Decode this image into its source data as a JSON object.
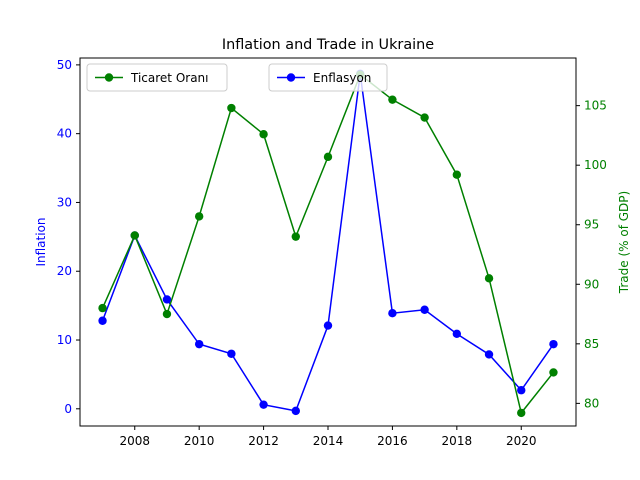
{
  "chart_data": {
    "type": "line",
    "title": "Inflation and Trade in Ukraine",
    "xlabel": "",
    "x": [
      2007,
      2008,
      2009,
      2010,
      2011,
      2012,
      2013,
      2014,
      2015,
      2016,
      2017,
      2018,
      2019,
      2020,
      2021
    ],
    "x_ticks": [
      2008,
      2010,
      2012,
      2014,
      2016,
      2018,
      2020
    ],
    "grid": false,
    "y_left": {
      "label": "Inflation",
      "ylim": [
        -2.5,
        51
      ],
      "ticks": [
        0,
        10,
        20,
        30,
        40,
        50
      ],
      "color": "#0000ff"
    },
    "y_right": {
      "label": "Trade (% of GDP)",
      "ylim": [
        78.1,
        109.0
      ],
      "ticks": [
        80,
        85,
        90,
        95,
        100,
        105
      ],
      "color": "#008000"
    },
    "series": [
      {
        "name": "Enflasyon",
        "axis": "left",
        "color": "#0000ff",
        "values": [
          12.8,
          25.2,
          15.9,
          9.4,
          8.0,
          0.6,
          -0.3,
          12.1,
          48.7,
          13.9,
          14.4,
          10.9,
          7.9,
          2.7,
          9.4
        ]
      },
      {
        "name": "Ticaret Oranı",
        "axis": "right",
        "color": "#008000",
        "values": [
          88.0,
          94.1,
          87.5,
          95.7,
          104.8,
          102.6,
          94.0,
          100.7,
          107.6,
          105.5,
          104.0,
          99.2,
          90.5,
          79.2,
          82.6
        ]
      }
    ],
    "legends": [
      {
        "placement": "upper-left",
        "series": "Ticaret Oranı"
      },
      {
        "placement": "upper-center",
        "series": "Enflasyon"
      }
    ]
  }
}
